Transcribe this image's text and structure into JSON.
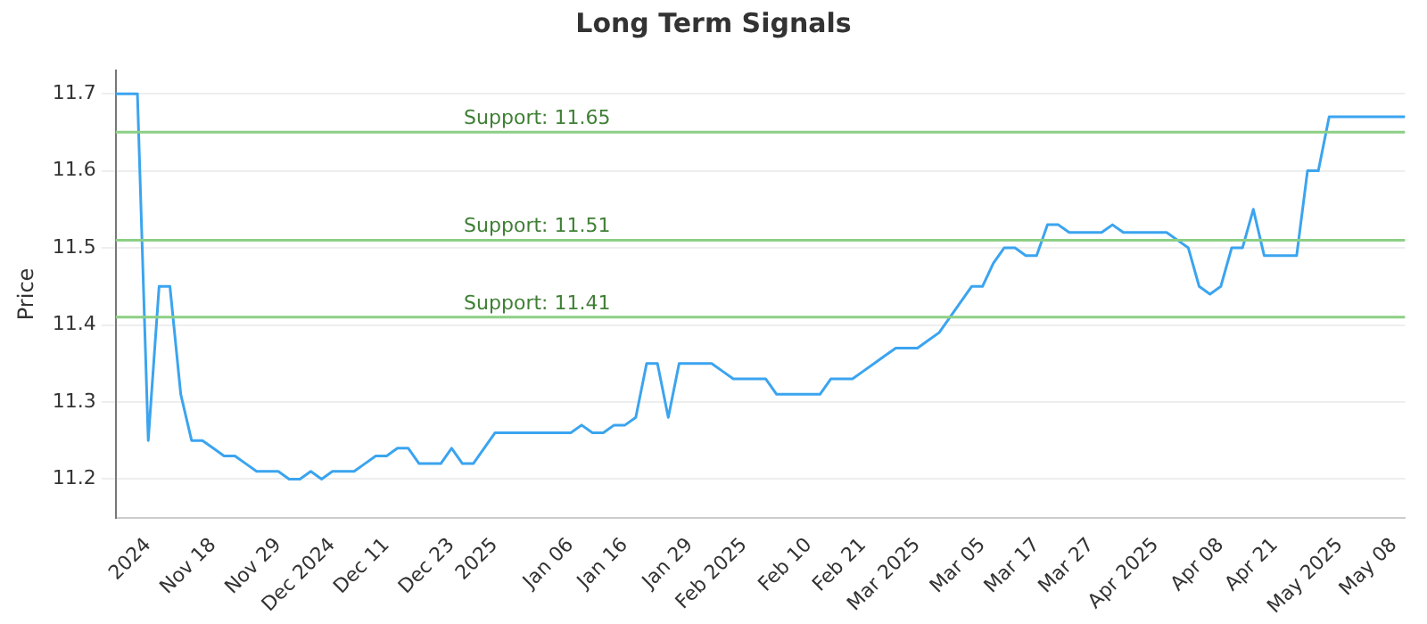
{
  "chart_data": {
    "type": "line",
    "title": "Long Term Signals",
    "ylabel": "Price",
    "categories": [
      null,
      null,
      null,
      "2024",
      null,
      null,
      null,
      null,
      null,
      "Nov 18",
      null,
      null,
      null,
      null,
      null,
      "Nov 29",
      null,
      null,
      null,
      null,
      "Dec 2024",
      null,
      null,
      null,
      null,
      "Dec 11",
      null,
      null,
      null,
      null,
      null,
      "Dec 23",
      null,
      null,
      null,
      "2025",
      null,
      null,
      null,
      null,
      null,
      null,
      "Jan 06",
      null,
      null,
      null,
      null,
      "Jan 16",
      null,
      null,
      null,
      null,
      null,
      "Jan 29",
      null,
      null,
      null,
      null,
      "Feb 2025",
      null,
      null,
      null,
      null,
      null,
      "Feb 10",
      null,
      null,
      null,
      null,
      "Feb 21",
      null,
      null,
      null,
      null,
      "Mar 2025",
      null,
      null,
      null,
      null,
      null,
      "Mar 05",
      null,
      null,
      null,
      null,
      "Mar 17",
      null,
      null,
      null,
      null,
      "Mar 27",
      null,
      null,
      null,
      null,
      null,
      "Apr 2025",
      null,
      null,
      null,
      null,
      null,
      "Apr 08",
      null,
      null,
      null,
      null,
      "Apr 21",
      null,
      null,
      null,
      null,
      null,
      "May 2025",
      null,
      null,
      null,
      null,
      "May 08",
      null
    ],
    "series": [
      {
        "color": "#3ba4ef",
        "values": [
          11.7,
          11.7,
          11.7,
          11.25,
          11.45,
          11.45,
          11.31,
          11.25,
          11.25,
          11.24,
          11.23,
          11.23,
          11.22,
          11.21,
          11.21,
          11.21,
          11.2,
          11.2,
          11.21,
          11.2,
          11.21,
          11.21,
          11.21,
          11.22,
          11.23,
          11.23,
          11.24,
          11.24,
          11.22,
          11.22,
          11.22,
          11.24,
          11.22,
          11.22,
          11.24,
          11.26,
          11.26,
          11.26,
          11.26,
          11.26,
          11.26,
          11.26,
          11.26,
          11.27,
          11.26,
          11.26,
          11.27,
          11.27,
          11.28,
          11.35,
          11.35,
          11.28,
          11.35,
          11.35,
          11.35,
          11.35,
          11.34,
          11.33,
          11.33,
          11.33,
          11.33,
          11.31,
          11.31,
          11.31,
          11.31,
          11.31,
          11.33,
          11.33,
          11.33,
          11.34,
          11.35,
          11.36,
          11.37,
          11.37,
          11.37,
          11.38,
          11.39,
          11.41,
          11.43,
          11.45,
          11.45,
          11.48,
          11.5,
          11.5,
          11.49,
          11.49,
          11.53,
          11.53,
          11.52,
          11.52,
          11.52,
          11.52,
          11.53,
          11.52,
          11.52,
          11.52,
          11.52,
          11.52,
          11.51,
          11.5,
          11.45,
          11.44,
          11.45,
          11.5,
          11.5,
          11.55,
          11.49,
          11.49,
          11.49,
          11.49,
          11.6,
          11.6,
          11.67,
          11.67,
          11.67,
          11.67,
          11.67,
          11.67,
          11.67,
          11.67
        ]
      }
    ],
    "ylim": [
      11.15,
      11.73
    ],
    "yticks": [
      11.2,
      11.3,
      11.4,
      11.5,
      11.6,
      11.7
    ],
    "grid": "y",
    "legend": false,
    "marker": "none",
    "line_style": "solid",
    "ref_lines": [
      {
        "axis": "y",
        "value": 11.65,
        "label": "Support: 11.65",
        "color": "#8ccf85"
      },
      {
        "axis": "y",
        "value": 11.51,
        "label": "Support: 11.51",
        "color": "#8ccf85"
      },
      {
        "axis": "y",
        "value": 11.41,
        "label": "Support: 11.41",
        "color": "#8ccf85"
      }
    ]
  }
}
